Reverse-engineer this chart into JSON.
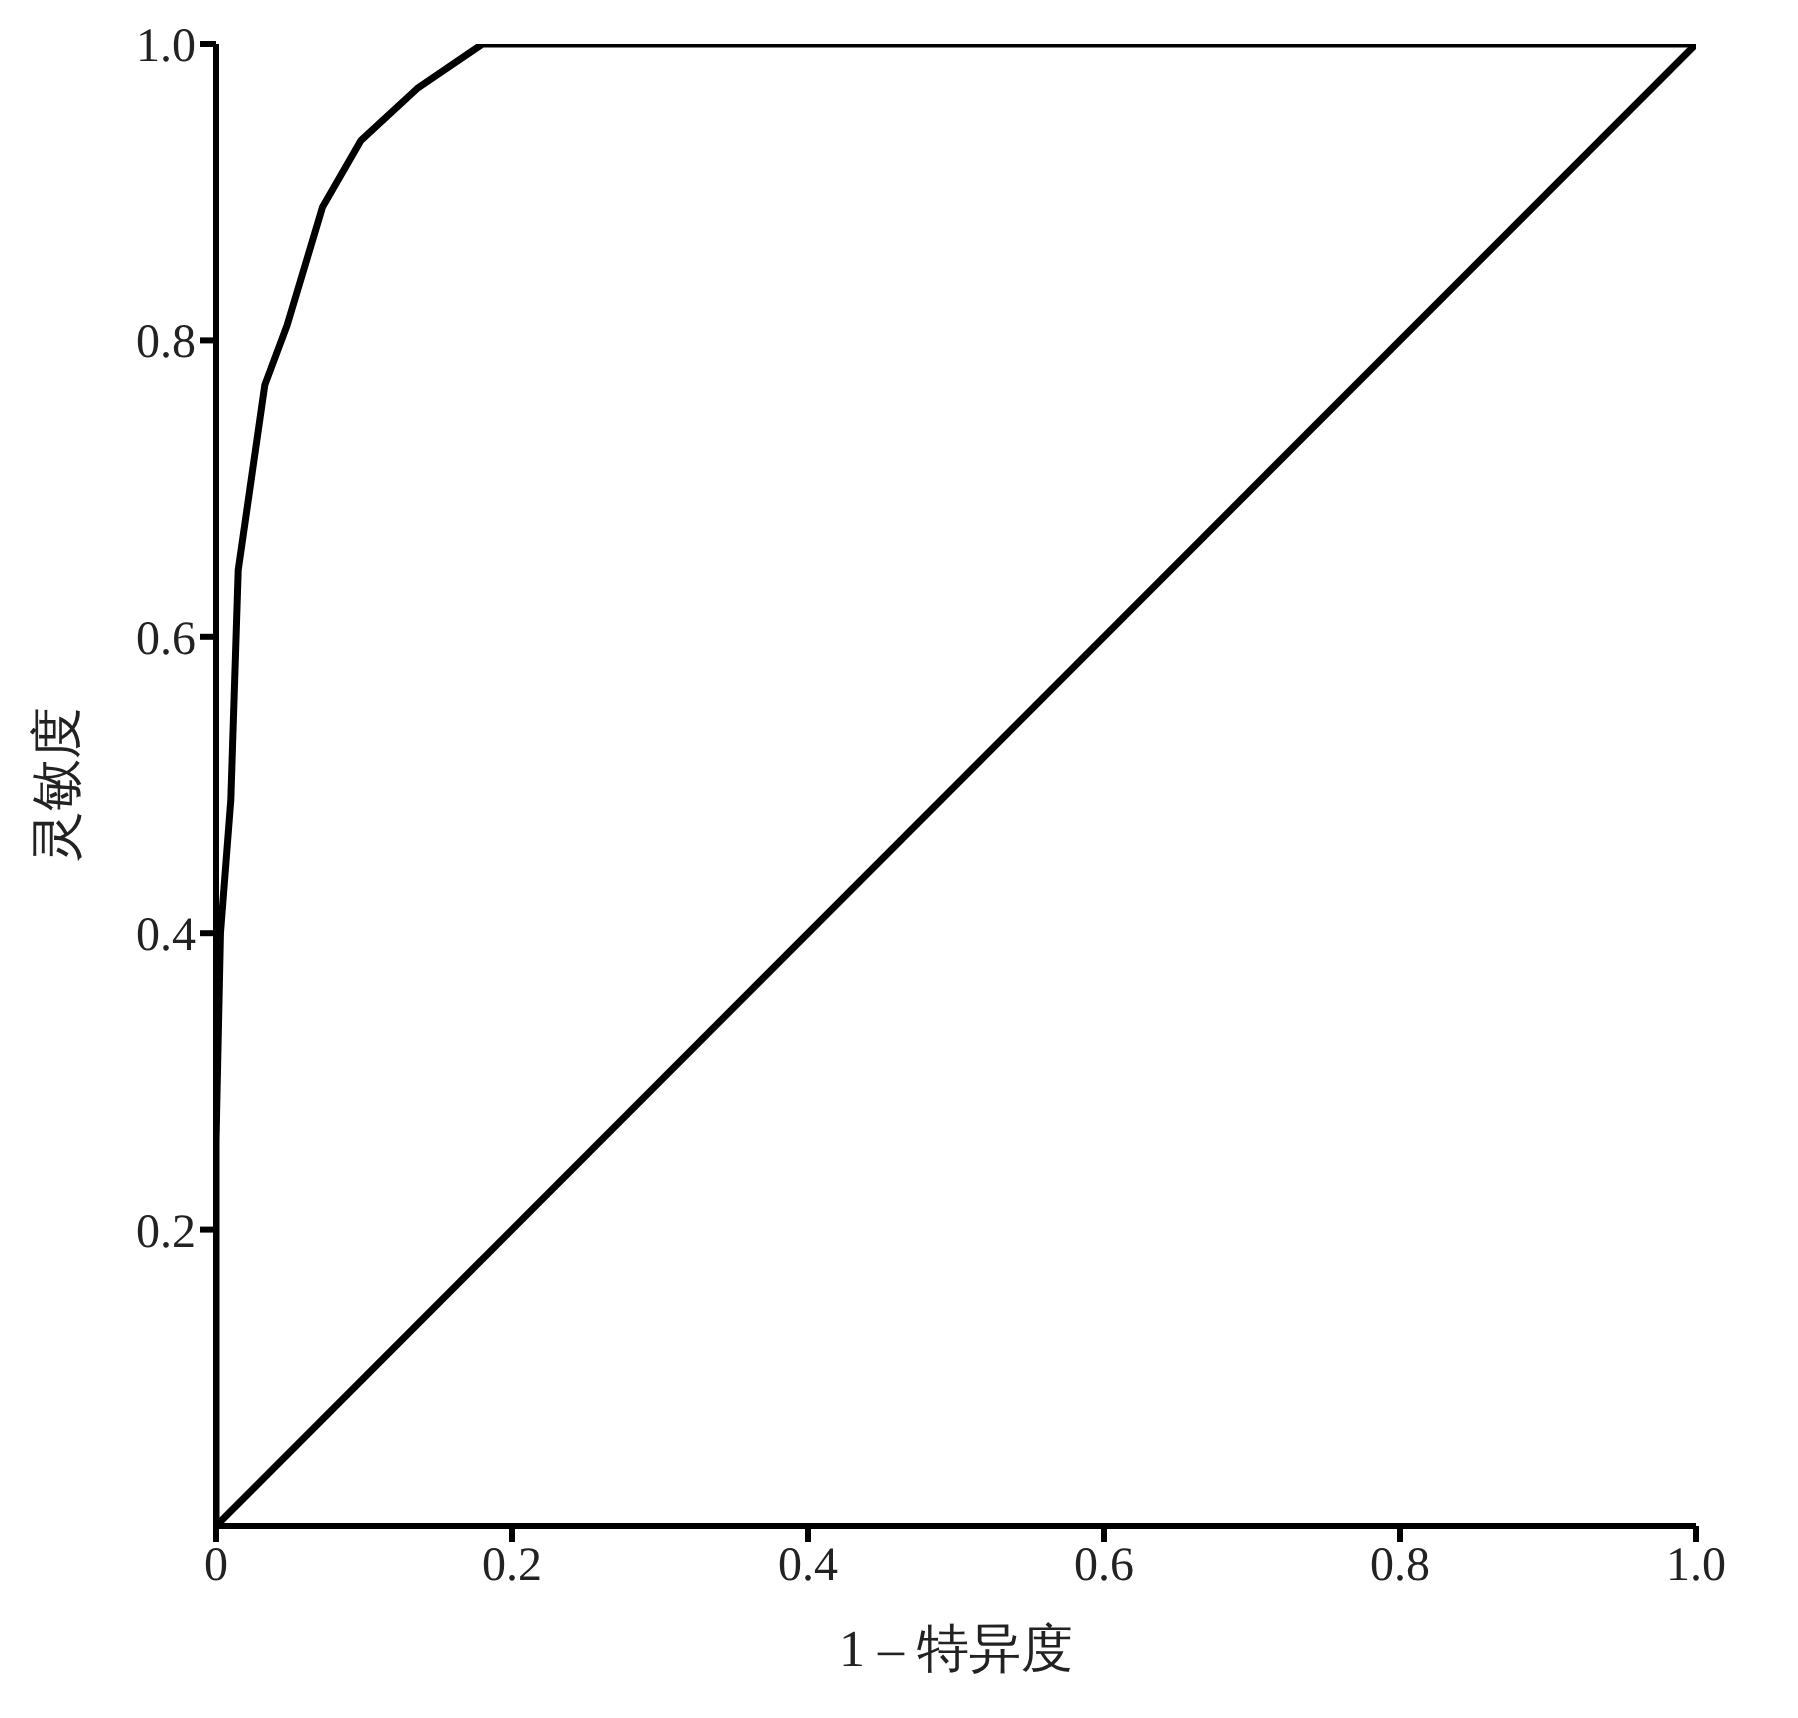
{
  "chart_data": {
    "type": "line",
    "xlabel": "1 – 特异度",
    "ylabel": "灵敏度",
    "xlim": [
      0,
      1
    ],
    "ylim": [
      0,
      1
    ],
    "xticks": [
      0,
      0.2,
      0.4,
      0.6,
      0.8,
      {
        "value": 1,
        "label": "1.0"
      }
    ],
    "yticks": [
      0.2,
      0.4,
      0.6,
      0.8,
      {
        "value": 1,
        "label": "1.0"
      }
    ],
    "series": [
      {
        "color": "#000000",
        "x": [
          0,
          0,
          0.003,
          0.01,
          0.015,
          0.033,
          0.048,
          0.072,
          0.098,
          0.136,
          0.18,
          1
        ],
        "values": [
          0,
          0.26,
          0.4,
          0.49,
          0.645,
          0.77,
          0.81,
          0.89,
          0.935,
          0.97,
          1,
          1
        ]
      },
      {
        "color": "#000000",
        "x": [
          0,
          1
        ],
        "values": [
          0,
          1
        ]
      }
    ],
    "grid": false,
    "marker": "none",
    "line_style": "solid"
  }
}
